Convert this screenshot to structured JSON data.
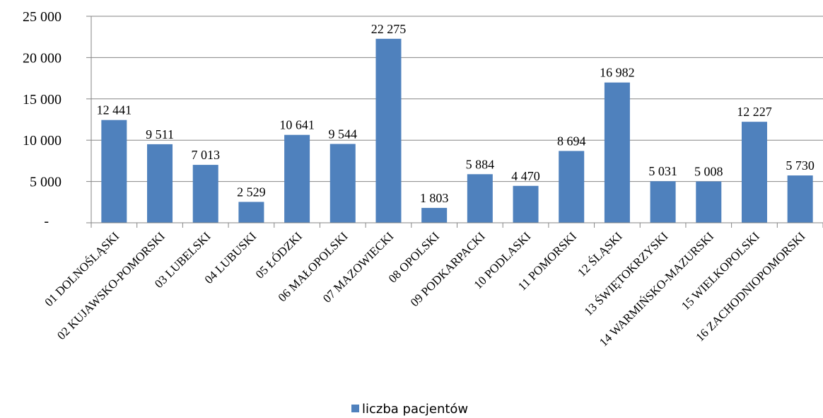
{
  "chart_data": {
    "type": "bar",
    "title": "",
    "xlabel": "",
    "ylabel": "",
    "ylim": [
      0,
      25000
    ],
    "yticks": [
      0,
      5000,
      10000,
      15000,
      20000,
      25000
    ],
    "ytick_labels": [
      "-",
      "5 000",
      "10 000",
      "15 000",
      "20 000",
      "25 000"
    ],
    "grid": "horizontal",
    "legend_position": "bottom",
    "bar_color": "#4F81BD",
    "categories": [
      "01 DOLNOŚLĄSKI",
      "02 KUJAWSKO-POMORSKI",
      "03 LUBELSKI",
      "04 LUBUSKI",
      "05 ŁÓDZKI",
      "06 MAŁOPOLSKI",
      "07 MAZOWIECKI",
      "08 OPOLSKI",
      "09 PODKARPACKI",
      "10 PODLASKI",
      "11 POMORSKI",
      "12 ŚLĄSKI",
      "13 ŚWIĘTOKRZYSKI",
      "14 WARMIŃSKO-MAZURSKI",
      "15 WIELKOPOLSKI",
      "16 ZACHODNIOPOMORSKI"
    ],
    "series": [
      {
        "name": "liczba pacjentów",
        "values": [
          12441,
          9511,
          7013,
          2529,
          10641,
          9544,
          22275,
          1803,
          5884,
          4470,
          8694,
          16982,
          5031,
          5008,
          12227,
          5730
        ],
        "labels": [
          "12 441",
          "9 511",
          "7 013",
          "2 529",
          "10 641",
          "9 544",
          "22 275",
          "1 803",
          "5 884",
          "4 470",
          "8 694",
          "16 982",
          "5 031",
          "5 008",
          "12 227",
          "5 730"
        ]
      }
    ]
  }
}
